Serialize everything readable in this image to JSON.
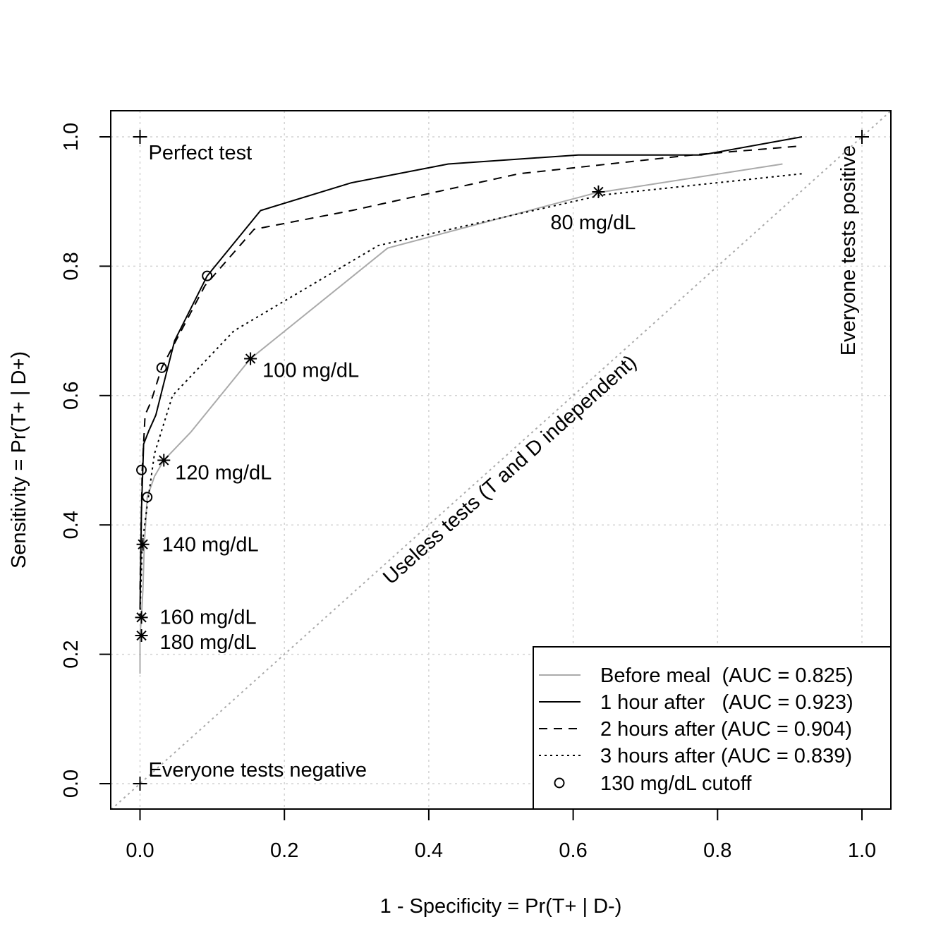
{
  "chart_data": {
    "type": "line",
    "title": "",
    "xlabel": "1 - Specificity = Pr(T+ | D-)",
    "ylabel": "Sensitivity = Pr(T+ | D+)",
    "xlim": [
      -0.04,
      1.04
    ],
    "ylim": [
      -0.04,
      1.04
    ],
    "x_ticks": [
      0.0,
      0.2,
      0.4,
      0.6,
      0.8,
      1.0
    ],
    "y_ticks": [
      0.0,
      0.2,
      0.4,
      0.6,
      0.8,
      1.0
    ],
    "x_tick_labels": [
      "0.0",
      "0.2",
      "0.4",
      "0.6",
      "0.8",
      "1.0"
    ],
    "y_tick_labels": [
      "0.0",
      "0.2",
      "0.4",
      "0.6",
      "0.8",
      "1.0"
    ],
    "grid": true,
    "legend_position": "bottom-right",
    "series": [
      {
        "name": "Before meal",
        "legend_label": "Before meal  (AUC = 0.825)",
        "color": "#aaaaaa",
        "dash": "solid",
        "auc": 0.825,
        "x": [
          0.0,
          0.0,
          0.002,
          0.004,
          0.006,
          0.01,
          0.02,
          0.033,
          0.07,
          0.153,
          0.343,
          0.63,
          0.89
        ],
        "y": [
          0.17,
          0.23,
          0.257,
          0.3,
          0.37,
          0.443,
          0.475,
          0.5,
          0.543,
          0.657,
          0.828,
          0.913,
          0.958
        ]
      },
      {
        "name": "1 hour after",
        "legend_label": "1 hour after   (AUC = 0.923)",
        "color": "#000000",
        "dash": "solid",
        "auc": 0.923,
        "x": [
          0.0,
          0.002,
          0.005,
          0.012,
          0.022,
          0.032,
          0.048,
          0.093,
          0.167,
          0.293,
          0.427,
          0.607,
          0.778,
          0.917
        ],
        "y": [
          0.27,
          0.42,
          0.525,
          0.545,
          0.57,
          0.615,
          0.685,
          0.785,
          0.886,
          0.929,
          0.958,
          0.972,
          0.972,
          1.0
        ]
      },
      {
        "name": "2 hours after",
        "legend_label": "2 hours after (AUC = 0.904)",
        "color": "#000000",
        "dash": "dashed",
        "auc": 0.904,
        "x": [
          0.0,
          0.003,
          0.007,
          0.015,
          0.03,
          0.09,
          0.158,
          0.293,
          0.525,
          0.765,
          0.917
        ],
        "y": [
          0.3,
          0.485,
          0.57,
          0.59,
          0.643,
          0.77,
          0.857,
          0.886,
          0.943,
          0.972,
          0.986
        ]
      },
      {
        "name": "3 hours after",
        "legend_label": "3 hours after (AUC = 0.839)",
        "color": "#000000",
        "dash": "dotted",
        "auc": 0.839,
        "x": [
          0.0,
          0.003,
          0.01,
          0.02,
          0.045,
          0.13,
          0.33,
          0.64,
          0.917
        ],
        "y": [
          0.26,
          0.37,
          0.43,
          0.51,
          0.6,
          0.7,
          0.832,
          0.91,
          0.943
        ]
      }
    ],
    "cutoff_130_points": {
      "legend_label": "130 mg/dL cutoff",
      "x": [
        0.01,
        0.093,
        0.03,
        0.002
      ],
      "y": [
        0.443,
        0.785,
        0.643,
        0.485
      ]
    },
    "cutoff_stars": [
      {
        "label": "80 mg/dL",
        "x": 0.635,
        "y": 0.915
      },
      {
        "label": "100 mg/dL",
        "x": 0.153,
        "y": 0.657
      },
      {
        "label": "120 mg/dL",
        "x": 0.033,
        "y": 0.5
      },
      {
        "label": "140 mg/dL",
        "x": 0.004,
        "y": 0.37
      },
      {
        "label": "160 mg/dL",
        "x": 0.002,
        "y": 0.257
      },
      {
        "label": "180 mg/dL",
        "x": 0.002,
        "y": 0.229
      }
    ],
    "reference_points": [
      {
        "label": "Perfect test",
        "x": 0.0,
        "y": 1.0
      },
      {
        "label": "Everyone tests negative",
        "x": 0.0,
        "y": 0.0
      },
      {
        "label": "Everyone tests positive",
        "x": 1.0,
        "y": 1.0
      }
    ],
    "diagonal_label": "Useless tests (T and D independent)"
  }
}
